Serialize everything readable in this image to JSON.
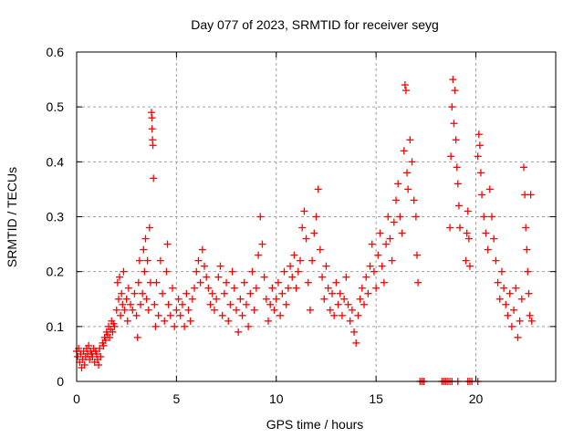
{
  "chart_data": {
    "type": "scatter",
    "title": "Day 077 of 2023, SRMTID for receiver seyg",
    "xlabel": "GPS time / hours",
    "ylabel": "SRMTID / TECUs",
    "xlim": [
      0,
      24
    ],
    "ylim": [
      0,
      0.6
    ],
    "xticks": [
      "0",
      "5",
      "10",
      "15",
      "20"
    ],
    "xtick_values": [
      0,
      5,
      10,
      15,
      20
    ],
    "yticks": [
      "0",
      "0.1",
      "0.2",
      "0.3",
      "0.4",
      "0.5",
      "0.6"
    ],
    "ytick_values": [
      0,
      0.1,
      0.2,
      0.3,
      0.4,
      0.5,
      0.6
    ],
    "grid": true,
    "marker": "plus",
    "color": "#ff0000",
    "series": [
      {
        "name": "SRMTID",
        "points": [
          [
            0.0,
            0.055
          ],
          [
            0.05,
            0.045
          ],
          [
            0.1,
            0.06
          ],
          [
            0.15,
            0.035
          ],
          [
            0.2,
            0.05
          ],
          [
            0.25,
            0.025
          ],
          [
            0.3,
            0.04
          ],
          [
            0.35,
            0.055
          ],
          [
            0.4,
            0.03
          ],
          [
            0.45,
            0.045
          ],
          [
            0.5,
            0.06
          ],
          [
            0.55,
            0.05
          ],
          [
            0.6,
            0.065
          ],
          [
            0.65,
            0.04
          ],
          [
            0.7,
            0.055
          ],
          [
            0.75,
            0.05
          ],
          [
            0.8,
            0.045
          ],
          [
            0.85,
            0.06
          ],
          [
            0.9,
            0.035
          ],
          [
            0.95,
            0.055
          ],
          [
            1.0,
            0.05
          ],
          [
            1.05,
            0.04
          ],
          [
            1.1,
            0.03
          ],
          [
            1.15,
            0.06
          ],
          [
            1.2,
            0.045
          ],
          [
            1.3,
            0.07
          ],
          [
            1.35,
            0.065
          ],
          [
            1.4,
            0.08
          ],
          [
            1.45,
            0.075
          ],
          [
            1.5,
            0.09
          ],
          [
            1.55,
            0.085
          ],
          [
            1.6,
            0.1
          ],
          [
            1.65,
            0.08
          ],
          [
            1.7,
            0.095
          ],
          [
            1.75,
            0.11
          ],
          [
            1.8,
            0.09
          ],
          [
            1.85,
            0.105
          ],
          [
            1.9,
            0.1
          ],
          [
            2.0,
            0.13
          ],
          [
            2.05,
            0.18
          ],
          [
            2.1,
            0.15
          ],
          [
            2.15,
            0.19
          ],
          [
            2.2,
            0.12
          ],
          [
            2.25,
            0.16
          ],
          [
            2.3,
            0.14
          ],
          [
            2.35,
            0.2
          ],
          [
            2.4,
            0.13
          ],
          [
            2.5,
            0.15
          ],
          [
            2.55,
            0.11
          ],
          [
            2.6,
            0.17
          ],
          [
            2.7,
            0.14
          ],
          [
            2.8,
            0.13
          ],
          [
            2.9,
            0.16
          ],
          [
            3.0,
            0.12
          ],
          [
            3.05,
            0.08
          ],
          [
            3.1,
            0.18
          ],
          [
            3.15,
            0.22
          ],
          [
            3.2,
            0.14
          ],
          [
            3.3,
            0.16
          ],
          [
            3.35,
            0.24
          ],
          [
            3.4,
            0.2
          ],
          [
            3.45,
            0.26
          ],
          [
            3.5,
            0.15
          ],
          [
            3.55,
            0.22
          ],
          [
            3.6,
            0.13
          ],
          [
            3.65,
            0.28
          ],
          [
            3.7,
            0.18
          ],
          [
            3.75,
            0.49
          ],
          [
            3.77,
            0.48
          ],
          [
            3.78,
            0.46
          ],
          [
            3.8,
            0.44
          ],
          [
            3.82,
            0.43
          ],
          [
            3.85,
            0.37
          ],
          [
            3.9,
            0.14
          ],
          [
            3.95,
            0.1
          ],
          [
            4.0,
            0.18
          ],
          [
            4.1,
            0.12
          ],
          [
            4.2,
            0.22
          ],
          [
            4.3,
            0.16
          ],
          [
            4.4,
            0.11
          ],
          [
            4.5,
            0.2
          ],
          [
            4.55,
            0.25
          ],
          [
            4.6,
            0.14
          ],
          [
            4.7,
            0.12
          ],
          [
            4.8,
            0.17
          ],
          [
            4.9,
            0.1
          ],
          [
            5.0,
            0.13
          ],
          [
            5.1,
            0.15
          ],
          [
            5.2,
            0.12
          ],
          [
            5.3,
            0.14
          ],
          [
            5.4,
            0.1
          ],
          [
            5.5,
            0.16
          ],
          [
            5.6,
            0.13
          ],
          [
            5.7,
            0.11
          ],
          [
            5.8,
            0.15
          ],
          [
            5.9,
            0.17
          ],
          [
            6.0,
            0.2
          ],
          [
            6.1,
            0.22
          ],
          [
            6.2,
            0.18
          ],
          [
            6.3,
            0.24
          ],
          [
            6.4,
            0.21
          ],
          [
            6.5,
            0.19
          ],
          [
            6.6,
            0.17
          ],
          [
            6.7,
            0.14
          ],
          [
            6.8,
            0.16
          ],
          [
            6.9,
            0.13
          ],
          [
            7.0,
            0.15
          ],
          [
            7.1,
            0.19
          ],
          [
            7.2,
            0.21
          ],
          [
            7.3,
            0.12
          ],
          [
            7.4,
            0.16
          ],
          [
            7.5,
            0.18
          ],
          [
            7.6,
            0.11
          ],
          [
            7.7,
            0.14
          ],
          [
            7.8,
            0.2
          ],
          [
            7.9,
            0.17
          ],
          [
            8.0,
            0.13
          ],
          [
            8.1,
            0.09
          ],
          [
            8.2,
            0.15
          ],
          [
            8.3,
            0.12
          ],
          [
            8.4,
            0.18
          ],
          [
            8.5,
            0.14
          ],
          [
            8.6,
            0.1
          ],
          [
            8.7,
            0.16
          ],
          [
            8.8,
            0.2
          ],
          [
            8.9,
            0.13
          ],
          [
            9.0,
            0.17
          ],
          [
            9.1,
            0.23
          ],
          [
            9.2,
            0.3
          ],
          [
            9.3,
            0.25
          ],
          [
            9.4,
            0.19
          ],
          [
            9.5,
            0.15
          ],
          [
            9.6,
            0.11
          ],
          [
            9.7,
            0.14
          ],
          [
            9.8,
            0.17
          ],
          [
            9.9,
            0.13
          ],
          [
            10.0,
            0.15
          ],
          [
            10.1,
            0.18
          ],
          [
            10.2,
            0.12
          ],
          [
            10.3,
            0.16
          ],
          [
            10.4,
            0.2
          ],
          [
            10.5,
            0.14
          ],
          [
            10.6,
            0.17
          ],
          [
            10.7,
            0.21
          ],
          [
            10.8,
            0.19
          ],
          [
            10.9,
            0.23
          ],
          [
            11.0,
            0.17
          ],
          [
            11.1,
            0.2
          ],
          [
            11.2,
            0.22
          ],
          [
            11.3,
            0.28
          ],
          [
            11.4,
            0.31
          ],
          [
            11.5,
            0.26
          ],
          [
            11.6,
            0.18
          ],
          [
            11.7,
            0.13
          ],
          [
            11.8,
            0.22
          ],
          [
            11.9,
            0.27
          ],
          [
            12.0,
            0.3
          ],
          [
            12.1,
            0.35
          ],
          [
            12.2,
            0.24
          ],
          [
            12.3,
            0.19
          ],
          [
            12.4,
            0.15
          ],
          [
            12.5,
            0.21
          ],
          [
            12.6,
            0.17
          ],
          [
            12.7,
            0.13
          ],
          [
            12.8,
            0.16
          ],
          [
            12.9,
            0.12
          ],
          [
            13.0,
            0.18
          ],
          [
            13.1,
            0.14
          ],
          [
            13.2,
            0.16
          ],
          [
            13.3,
            0.12
          ],
          [
            13.4,
            0.15
          ],
          [
            13.5,
            0.19
          ],
          [
            13.6,
            0.14
          ],
          [
            13.7,
            0.11
          ],
          [
            13.8,
            0.13
          ],
          [
            13.9,
            0.09
          ],
          [
            14.0,
            0.07
          ],
          [
            14.1,
            0.12
          ],
          [
            14.2,
            0.15
          ],
          [
            14.3,
            0.17
          ],
          [
            14.4,
            0.14
          ],
          [
            14.5,
            0.19
          ],
          [
            14.6,
            0.16
          ],
          [
            14.7,
            0.21
          ],
          [
            14.8,
            0.25
          ],
          [
            14.9,
            0.2
          ],
          [
            15.0,
            0.17
          ],
          [
            15.1,
            0.23
          ],
          [
            15.2,
            0.27
          ],
          [
            15.3,
            0.21
          ],
          [
            15.4,
            0.18
          ],
          [
            15.5,
            0.25
          ],
          [
            15.6,
            0.3
          ],
          [
            15.7,
            0.26
          ],
          [
            15.8,
            0.22
          ],
          [
            15.9,
            0.29
          ],
          [
            16.0,
            0.33
          ],
          [
            16.1,
            0.36
          ],
          [
            16.2,
            0.3
          ],
          [
            16.3,
            0.27
          ],
          [
            16.4,
            0.42
          ],
          [
            16.45,
            0.54
          ],
          [
            16.5,
            0.53
          ],
          [
            16.55,
            0.38
          ],
          [
            16.6,
            0.35
          ],
          [
            16.7,
            0.44
          ],
          [
            16.8,
            0.4
          ],
          [
            16.9,
            0.33
          ],
          [
            17.0,
            0.3
          ],
          [
            17.05,
            0.23
          ],
          [
            17.1,
            0.18
          ],
          [
            17.2,
            0.0
          ],
          [
            17.3,
            0.0
          ],
          [
            17.4,
            0.0
          ],
          [
            18.3,
            0.0
          ],
          [
            18.4,
            0.0
          ],
          [
            18.5,
            0.0
          ],
          [
            18.6,
            0.0
          ],
          [
            18.7,
            0.0
          ],
          [
            18.8,
            0.0
          ],
          [
            18.7,
            0.28
          ],
          [
            18.75,
            0.41
          ],
          [
            18.8,
            0.5
          ],
          [
            18.85,
            0.55
          ],
          [
            18.9,
            0.47
          ],
          [
            18.95,
            0.53
          ],
          [
            19.0,
            0.44
          ],
          [
            19.05,
            0.39
          ],
          [
            19.1,
            0.36
          ],
          [
            19.15,
            0.32
          ],
          [
            19.2,
            0.28
          ],
          [
            19.1,
            0.0
          ],
          [
            19.5,
            0.22
          ],
          [
            19.55,
            0.27
          ],
          [
            19.6,
            0.31
          ],
          [
            19.65,
            0.26
          ],
          [
            19.7,
            0.21
          ],
          [
            19.6,
            0.0
          ],
          [
            19.7,
            0.0
          ],
          [
            19.8,
            0.0
          ],
          [
            20.1,
            0.0
          ],
          [
            20.1,
            0.41
          ],
          [
            20.15,
            0.45
          ],
          [
            20.2,
            0.43
          ],
          [
            20.25,
            0.38
          ],
          [
            20.3,
            0.34
          ],
          [
            20.4,
            0.3
          ],
          [
            20.5,
            0.27
          ],
          [
            20.6,
            0.24
          ],
          [
            20.7,
            0.35
          ],
          [
            20.8,
            0.3
          ],
          [
            20.9,
            0.26
          ],
          [
            21.0,
            0.22
          ],
          [
            21.1,
            0.18
          ],
          [
            21.2,
            0.15
          ],
          [
            21.3,
            0.2
          ],
          [
            21.4,
            0.17
          ],
          [
            21.5,
            0.14
          ],
          [
            21.6,
            0.12
          ],
          [
            21.7,
            0.16
          ],
          [
            21.8,
            0.1
          ],
          [
            21.9,
            0.13
          ],
          [
            22.0,
            0.17
          ],
          [
            22.1,
            0.08
          ],
          [
            22.2,
            0.11
          ],
          [
            22.3,
            0.15
          ],
          [
            22.4,
            0.39
          ],
          [
            22.45,
            0.34
          ],
          [
            22.5,
            0.28
          ],
          [
            22.55,
            0.24
          ],
          [
            22.6,
            0.2
          ],
          [
            22.65,
            0.16
          ],
          [
            22.7,
            0.12
          ],
          [
            22.75,
            0.34
          ],
          [
            22.8,
            0.11
          ]
        ]
      }
    ]
  }
}
